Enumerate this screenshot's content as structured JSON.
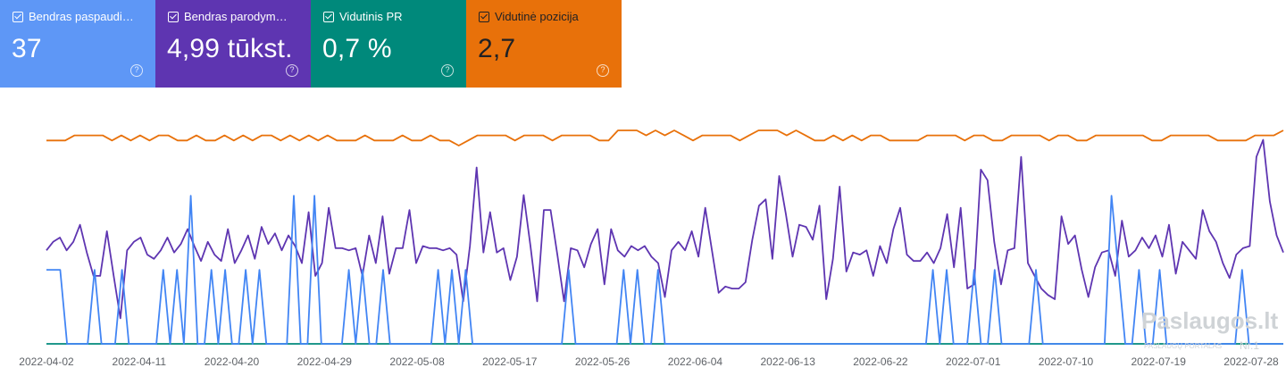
{
  "cards": [
    {
      "label": "Bendras paspaudi…",
      "value": "37",
      "color": "#5e97f6",
      "text_color": "#ffffff"
    },
    {
      "label": "Bendras parodym…",
      "value": "4,99 tūkst.",
      "color": "#5e35b1",
      "text_color": "#ffffff"
    },
    {
      "label": "Vidutinis PR",
      "value": "0,7 %",
      "color": "#00897b",
      "text_color": "#ffffff"
    },
    {
      "label": "Vidutinė pozicija",
      "value": "2,7",
      "color": "#e8710a",
      "text_color": "#202124"
    }
  ],
  "help_icon": "?",
  "watermark": {
    "main": "Paslaugos.lt",
    "sub": "PASLAUGŲ PORTALAS",
    "badge": "Nr.1"
  },
  "chart_data": {
    "type": "line",
    "x_start": "2022-04-02",
    "x_end": "2022-07-31",
    "xticks": [
      "2022-04-02",
      "2022-04-11",
      "2022-04-20",
      "2022-04-29",
      "2022-05-08",
      "2022-05-17",
      "2022-05-26",
      "2022-06-04",
      "2022-06-13",
      "2022-06-22",
      "2022-07-01",
      "2022-07-10",
      "2022-07-19",
      "2022-07-28"
    ],
    "series": [
      {
        "key": "position",
        "color": "#e8710a",
        "values": [
          8,
          8,
          8,
          7,
          7,
          7,
          7,
          8,
          7,
          8,
          7,
          8,
          7,
          7,
          8,
          8,
          7,
          8,
          8,
          7,
          8,
          7,
          8,
          7,
          7,
          8,
          7,
          8,
          7,
          8,
          7,
          8,
          8,
          8,
          7,
          8,
          8,
          8,
          7,
          8,
          8,
          7,
          8,
          8,
          9,
          8,
          7,
          7,
          7,
          7,
          8,
          7,
          7,
          7,
          8,
          7,
          7,
          7,
          7,
          8,
          8,
          6,
          6,
          6,
          7,
          6,
          7,
          6,
          7,
          8,
          7,
          7,
          7,
          7,
          8,
          7,
          6,
          6,
          6,
          7,
          6,
          7,
          8,
          8,
          7,
          8,
          7,
          8,
          7,
          7,
          8,
          8,
          8,
          8,
          7,
          7,
          7,
          7,
          8,
          7,
          7,
          8,
          8,
          7,
          7,
          7,
          7,
          8,
          7,
          7,
          8,
          8,
          7,
          7,
          7,
          7,
          7,
          7,
          8,
          8,
          7,
          7,
          7,
          7,
          7,
          8,
          8,
          8,
          8,
          7,
          7,
          7,
          6
        ]
      },
      {
        "key": "impressions",
        "color": "#5e35b1",
        "values": [
          36,
          40,
          42,
          36,
          40,
          48,
          35,
          24,
          24,
          45,
          24,
          4,
          36,
          40,
          42,
          34,
          32,
          36,
          42,
          35,
          39,
          46,
          38,
          31,
          40,
          34,
          31,
          46,
          30,
          36,
          43,
          32,
          47,
          39,
          44,
          36,
          43,
          38,
          30,
          54,
          24,
          30,
          56,
          37,
          37,
          36,
          37,
          24,
          43,
          30,
          52,
          25,
          37,
          37,
          55,
          30,
          38,
          37,
          37,
          36,
          37,
          34,
          12,
          38,
          75,
          35,
          54,
          35,
          37,
          22,
          33,
          62,
          38,
          12,
          55,
          55,
          34,
          12,
          37,
          36,
          28,
          39,
          46,
          20,
          46,
          36,
          33,
          38,
          36,
          38,
          33,
          30,
          14,
          36,
          40,
          36,
          45,
          33,
          56,
          36,
          16,
          19,
          18,
          18,
          21,
          41,
          57,
          60,
          32,
          71,
          53,
          33,
          48,
          47,
          41,
          57,
          13,
          32,
          66,
          26,
          35,
          34,
          36,
          24,
          38,
          30,
          46,
          56,
          34,
          31,
          31,
          35,
          30,
          37,
          53,
          28,
          56,
          18,
          20,
          74,
          69,
          40,
          20,
          36,
          37,
          80,
          30,
          24,
          18,
          15,
          13,
          52,
          39,
          43,
          27,
          14,
          28,
          35,
          36,
          24,
          50,
          33,
          36,
          42,
          37,
          43,
          33,
          48,
          25,
          40,
          36,
          32,
          55,
          45,
          40,
          30,
          23,
          34,
          37,
          38,
          80,
          88,
          59,
          43,
          35
        ]
      },
      {
        "key": "ctr",
        "color": "#00897b",
        "values": [
          0,
          0,
          0,
          0,
          0,
          0,
          0,
          0,
          0,
          0,
          0,
          0,
          0,
          0,
          0,
          0,
          0,
          0,
          0,
          0,
          0,
          0,
          0,
          0,
          0,
          0,
          0,
          0,
          0,
          0,
          0,
          0,
          0,
          0,
          0,
          0,
          0,
          0,
          0,
          0,
          0,
          0,
          0,
          0,
          0,
          0,
          0,
          0,
          0,
          0,
          0,
          0,
          0,
          0,
          0,
          0,
          0,
          0,
          0,
          0,
          0,
          0,
          0,
          0,
          0,
          0,
          0,
          0,
          0,
          0,
          0,
          0,
          0,
          0,
          0,
          0,
          0,
          0,
          0,
          0,
          0,
          0,
          0,
          0,
          0,
          0,
          0,
          0,
          0,
          0,
          0,
          0,
          0,
          0,
          0,
          0,
          0,
          0,
          0,
          0,
          0,
          0,
          0,
          0,
          0,
          0,
          0,
          0,
          0,
          0,
          0,
          0,
          0,
          0,
          0,
          0,
          0,
          0,
          0,
          0,
          0,
          0,
          0,
          0,
          0,
          0,
          0,
          0,
          0,
          0,
          0,
          0,
          0,
          0,
          0,
          0,
          0,
          0,
          0,
          0,
          0,
          0,
          0,
          0,
          0,
          0,
          0,
          0,
          0,
          0,
          0,
          0,
          0,
          0,
          0,
          0,
          0,
          0,
          0,
          0,
          0,
          0,
          0,
          0,
          0,
          0,
          0,
          0,
          0,
          0,
          0,
          0,
          0,
          0,
          0,
          0,
          0,
          0,
          0,
          0,
          0,
          0,
          0,
          0,
          0
        ]
      },
      {
        "key": "clicks",
        "color": "#4285f4",
        "values": [
          1,
          1,
          1,
          0,
          0,
          0,
          0,
          1,
          0,
          0,
          0,
          1,
          0,
          0,
          0,
          0,
          0,
          1,
          0,
          1,
          0,
          2,
          0,
          0,
          1,
          0,
          1,
          0,
          0,
          1,
          0,
          1,
          0,
          0,
          0,
          0,
          2,
          0,
          0,
          2,
          0,
          0,
          0,
          0,
          1,
          0,
          1,
          0,
          0,
          1,
          0,
          0,
          0,
          0,
          0,
          0,
          0,
          1,
          0,
          1,
          0,
          1,
          0,
          0,
          0,
          0,
          0,
          0,
          0,
          0,
          0,
          0,
          0,
          0,
          0,
          0,
          1,
          0,
          0,
          0,
          0,
          0,
          0,
          0,
          1,
          0,
          1,
          0,
          0,
          1,
          0,
          0,
          0,
          0,
          0,
          0,
          0,
          0,
          0,
          0,
          0,
          0,
          0,
          0,
          0,
          0,
          0,
          0,
          0,
          0,
          0,
          0,
          0,
          0,
          0,
          0,
          0,
          0,
          0,
          0,
          0,
          0,
          0,
          0,
          0,
          0,
          0,
          0,
          0,
          1,
          0,
          1,
          0,
          0,
          0,
          1,
          0,
          0,
          1,
          0,
          0,
          0,
          0,
          0,
          1,
          0,
          0,
          0,
          0,
          0,
          0,
          0,
          0,
          0,
          0,
          2,
          1,
          0,
          0,
          1,
          0,
          0,
          1,
          0,
          0,
          0,
          0,
          0,
          0,
          0,
          0,
          0,
          0,
          0,
          1,
          0,
          0,
          0,
          0,
          0,
          0
        ]
      }
    ]
  }
}
